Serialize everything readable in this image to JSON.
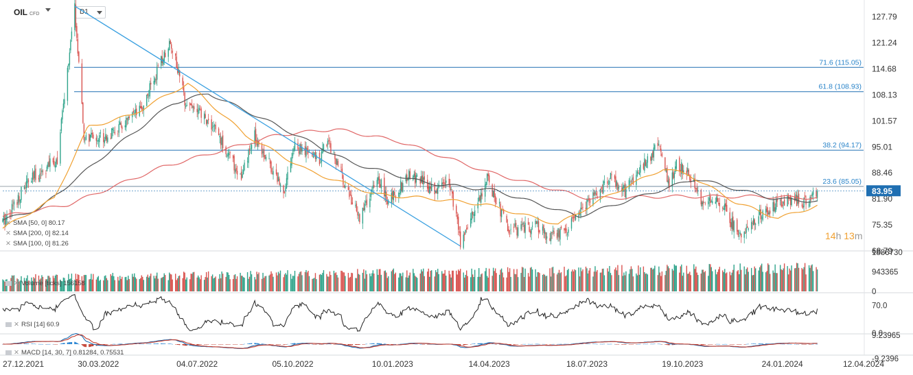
{
  "header": {
    "symbol": "OIL",
    "symbol_type": "CFD",
    "timeframe": "D1"
  },
  "countdown": {
    "hours": "14",
    "h_unit": "h",
    "minutes": "13",
    "m_unit": "m"
  },
  "colors": {
    "up": "#2ea38a",
    "down": "#d9534f",
    "sma50": "#f0a030",
    "sma100": "#555555",
    "sma200": "#e06666",
    "fib": "#1f6fb2",
    "trendline": "#3aa0e0",
    "price_tag": "#1f6fb2"
  },
  "legends": {
    "sma50": "SMA [50, 0] 80.17",
    "sma200": "SMA [200, 0] 82.14",
    "sma100": "SMA [100, 0] 81.26",
    "volume": "Volume [ticks] 156158",
    "rsi": "RSI [14] 60.9",
    "macd": "MACD [14, 30, 7] 0.81284, 0.75531"
  },
  "chart_data": {
    "type": "candlestick",
    "x_range": [
      "2021-12-27",
      "2024-04-12"
    ],
    "x_ticks": [
      "27.12.2021",
      "30.03.2022",
      "04.07.2022",
      "05.10.2022",
      "10.01.2023",
      "14.04.2023",
      "18.07.2023",
      "19.10.2023",
      "24.01.2024",
      "12.04.2024"
    ],
    "price_axis": {
      "range": [
        68.79,
        131.0
      ],
      "ticks": [
        "127.79",
        "121.24",
        "114.68",
        "108.13",
        "101.57",
        "95.01",
        "88.46",
        "81.90",
        "75.35",
        "68.79"
      ]
    },
    "last_price": 83.95,
    "last_price_label": "83.95",
    "horizontal_price_line": 85.05,
    "fib_levels": [
      {
        "label": "71.6 (115.05)",
        "price": 115.05
      },
      {
        "label": "61.8 (108.93)",
        "price": 108.93
      },
      {
        "label": "38.2 (94.17)",
        "price": 94.17
      },
      {
        "label": "23.6 (85.05)",
        "price": 85.05
      }
    ],
    "trendline": [
      {
        "date": "2022-03-07",
        "price": 130.5
      },
      {
        "date": "2023-03-17",
        "price": 70.0
      }
    ],
    "price_anchors": [
      [
        "2021-12-27",
        76.0
      ],
      [
        "2022-01-20",
        86.0
      ],
      [
        "2022-02-18",
        92.0
      ],
      [
        "2022-03-07",
        130.0
      ],
      [
        "2022-03-16",
        97.0
      ],
      [
        "2022-04-11",
        98.0
      ],
      [
        "2022-05-10",
        104.0
      ],
      [
        "2022-06-08",
        122.0
      ],
      [
        "2022-06-22",
        107.0
      ],
      [
        "2022-07-20",
        100.0
      ],
      [
        "2022-08-16",
        87.0
      ],
      [
        "2022-08-29",
        98.0
      ],
      [
        "2022-09-26",
        84.0
      ],
      [
        "2022-10-06",
        95.0
      ],
      [
        "2022-10-31",
        92.0
      ],
      [
        "2022-11-08",
        97.0
      ],
      [
        "2022-12-08",
        77.0
      ],
      [
        "2022-12-28",
        87.0
      ],
      [
        "2023-01-05",
        81.0
      ],
      [
        "2023-01-27",
        88.0
      ],
      [
        "2023-02-20",
        84.0
      ],
      [
        "2023-03-06",
        87.0
      ],
      [
        "2023-03-17",
        71.0
      ],
      [
        "2023-04-12",
        87.0
      ],
      [
        "2023-05-03",
        74.0
      ],
      [
        "2023-05-31",
        75.0
      ],
      [
        "2023-06-12",
        72.0
      ],
      [
        "2023-06-27",
        74.0
      ],
      [
        "2023-07-20",
        81.0
      ],
      [
        "2023-08-10",
        87.0
      ],
      [
        "2023-08-24",
        84.0
      ],
      [
        "2023-09-27",
        96.0
      ],
      [
        "2023-10-06",
        84.0
      ],
      [
        "2023-10-13",
        91.0
      ],
      [
        "2023-10-24",
        89.0
      ],
      [
        "2023-11-08",
        80.0
      ],
      [
        "2023-11-23",
        82.0
      ],
      [
        "2023-12-12",
        73.0
      ],
      [
        "2024-01-03",
        78.0
      ],
      [
        "2024-01-29",
        82.0
      ],
      [
        "2024-02-14",
        81.0
      ],
      [
        "2024-02-27",
        83.95
      ]
    ],
    "sma50_anchors": [
      [
        "2021-12-27",
        74.5
      ],
      [
        "2022-02-15",
        82.0
      ],
      [
        "2022-03-20",
        100.0
      ],
      [
        "2022-05-01",
        103.0
      ],
      [
        "2022-06-25",
        111.0
      ],
      [
        "2022-08-20",
        98.0
      ],
      [
        "2022-10-20",
        89.0
      ],
      [
        "2022-12-25",
        83.0
      ],
      [
        "2023-02-15",
        82.0
      ],
      [
        "2023-04-10",
        80.5
      ],
      [
        "2023-06-20",
        75.5
      ],
      [
        "2023-08-10",
        83.0
      ],
      [
        "2023-09-30",
        89.5
      ],
      [
        "2023-10-25",
        88.0
      ],
      [
        "2023-12-10",
        81.0
      ],
      [
        "2024-01-20",
        77.0
      ],
      [
        "2024-02-27",
        80.17
      ]
    ],
    "sma100_anchors": [
      [
        "2021-12-27",
        76.5
      ],
      [
        "2022-02-01",
        79.5
      ],
      [
        "2022-04-15",
        95.0
      ],
      [
        "2022-06-10",
        106.0
      ],
      [
        "2022-07-15",
        108.5
      ],
      [
        "2022-09-15",
        101.0
      ],
      [
        "2022-12-01",
        91.0
      ],
      [
        "2023-02-10",
        86.0
      ],
      [
        "2023-04-20",
        84.0
      ],
      [
        "2023-07-10",
        77.5
      ],
      [
        "2023-09-20",
        83.5
      ],
      [
        "2023-11-01",
        87.0
      ],
      [
        "2024-01-15",
        82.0
      ],
      [
        "2024-02-27",
        81.26
      ]
    ],
    "sma200_anchors": [
      [
        "2021-12-27",
        77.5
      ],
      [
        "2022-03-01",
        80.5
      ],
      [
        "2022-06-01",
        90.0
      ],
      [
        "2022-09-20",
        98.0
      ],
      [
        "2022-11-15",
        99.5
      ],
      [
        "2023-01-15",
        96.5
      ],
      [
        "2023-04-15",
        88.5
      ],
      [
        "2023-07-20",
        82.0
      ],
      [
        "2023-10-01",
        82.5
      ],
      [
        "2024-01-01",
        82.5
      ],
      [
        "2024-02-27",
        82.14
      ]
    ],
    "volume_axis": {
      "range": [
        0,
        1886730
      ],
      "ticks": [
        "1886730",
        "943365",
        "0"
      ]
    },
    "rsi_axis": {
      "range": [
        0,
        100
      ],
      "ticks": [
        "70.0",
        "0.0"
      ]
    },
    "macd_axis": {
      "range": [
        -9.2396,
        9.23965
      ],
      "ticks": [
        "9.23965",
        "-9.2396"
      ]
    }
  }
}
